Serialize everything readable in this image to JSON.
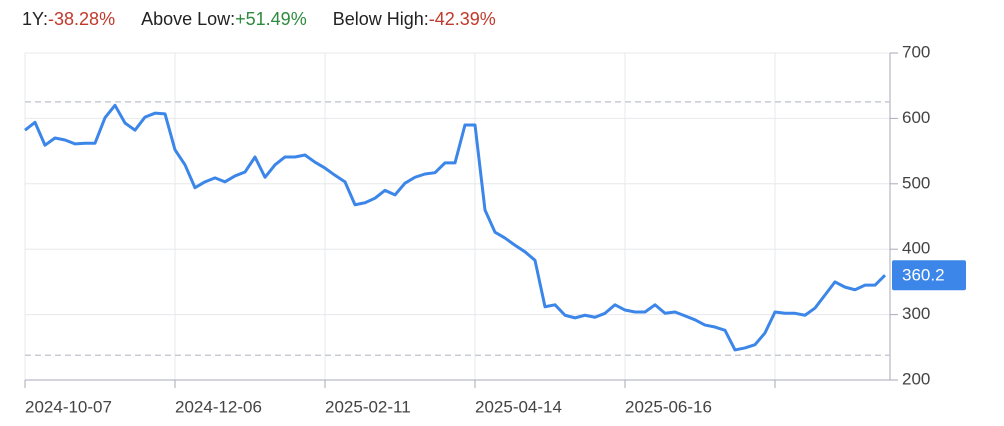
{
  "chart_data": {
    "type": "line",
    "stats": [
      {
        "label": "1Y:",
        "value": "-38.28%",
        "color": "#c0392b"
      },
      {
        "label": "Above Low:",
        "value": "+51.49%",
        "color": "#2e8b3d"
      },
      {
        "label": "Below High:",
        "value": "-42.39%",
        "color": "#c0392b"
      }
    ],
    "categories": [
      "2024-10-07",
      null,
      null,
      null,
      null,
      null,
      null,
      null,
      null,
      null,
      null,
      null,
      null,
      null,
      null,
      "2024-12-06",
      null,
      null,
      null,
      null,
      null,
      null,
      null,
      null,
      null,
      null,
      null,
      null,
      null,
      null,
      "2025-02-11",
      null,
      null,
      null,
      null,
      null,
      null,
      null,
      null,
      null,
      null,
      null,
      null,
      null,
      null,
      "2025-04-14",
      null,
      null,
      null,
      null,
      null,
      null,
      null,
      null,
      null,
      null,
      null,
      null,
      null,
      null,
      "2025-06-16",
      null,
      null,
      null,
      null,
      null,
      null,
      null,
      null,
      null,
      null,
      null,
      null,
      null,
      null,
      null,
      null,
      null,
      null,
      null,
      null,
      null,
      null,
      null,
      null,
      null,
      null
    ],
    "xtick_indices": [
      0,
      15,
      30,
      45,
      60,
      75
    ],
    "values": [
      582,
      594,
      559,
      570,
      567,
      561,
      562,
      562,
      601,
      620,
      593,
      582,
      602,
      608,
      607,
      552,
      529,
      494,
      503,
      509,
      503,
      512,
      518,
      541,
      510,
      529,
      541,
      541,
      544,
      533,
      524,
      513,
      503,
      468,
      471,
      478,
      490,
      483,
      501,
      510,
      515,
      517,
      532,
      532,
      590,
      590,
      460,
      426,
      417,
      406,
      396,
      383,
      312,
      315,
      299,
      295,
      299,
      296,
      302,
      315,
      307,
      304,
      304,
      315,
      302,
      304,
      298,
      292,
      284,
      281,
      276,
      246,
      249,
      254,
      272,
      304,
      302,
      302,
      299,
      310,
      330,
      350,
      342,
      338,
      345,
      345,
      360.2
    ],
    "color": "#3b86e8",
    "reference_lines": [
      625.2,
      237.8
    ],
    "ylim": [
      200,
      700
    ],
    "yticks": [
      200,
      300,
      400,
      500,
      600,
      700
    ],
    "grid": true
  }
}
